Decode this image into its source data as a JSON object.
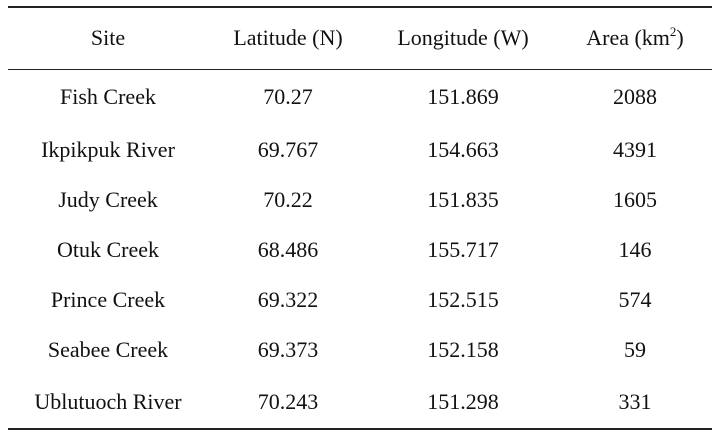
{
  "table": {
    "headers": {
      "site": "Site",
      "latitude": "Latitude (N)",
      "longitude": "Longitude (W)",
      "area_prefix": "Area (km",
      "area_superscript": "2",
      "area_suffix": ")"
    },
    "rows": [
      {
        "site": "Fish Creek",
        "latitude": "70.27",
        "longitude": "151.869",
        "area": "2088"
      },
      {
        "site": "Ikpikpuk River",
        "latitude": "69.767",
        "longitude": "154.663",
        "area": "4391"
      },
      {
        "site": "Judy Creek",
        "latitude": "70.22",
        "longitude": "151.835",
        "area": "1605"
      },
      {
        "site": "Otuk Creek",
        "latitude": "68.486",
        "longitude": "155.717",
        "area": "146"
      },
      {
        "site": "Prince Creek",
        "latitude": "69.322",
        "longitude": "152.515",
        "area": "574"
      },
      {
        "site": "Seabee Creek",
        "latitude": "69.373",
        "longitude": "152.158",
        "area": "59"
      },
      {
        "site": "Ublutuoch River",
        "latitude": "70.243",
        "longitude": "151.298",
        "area": "331"
      }
    ]
  }
}
